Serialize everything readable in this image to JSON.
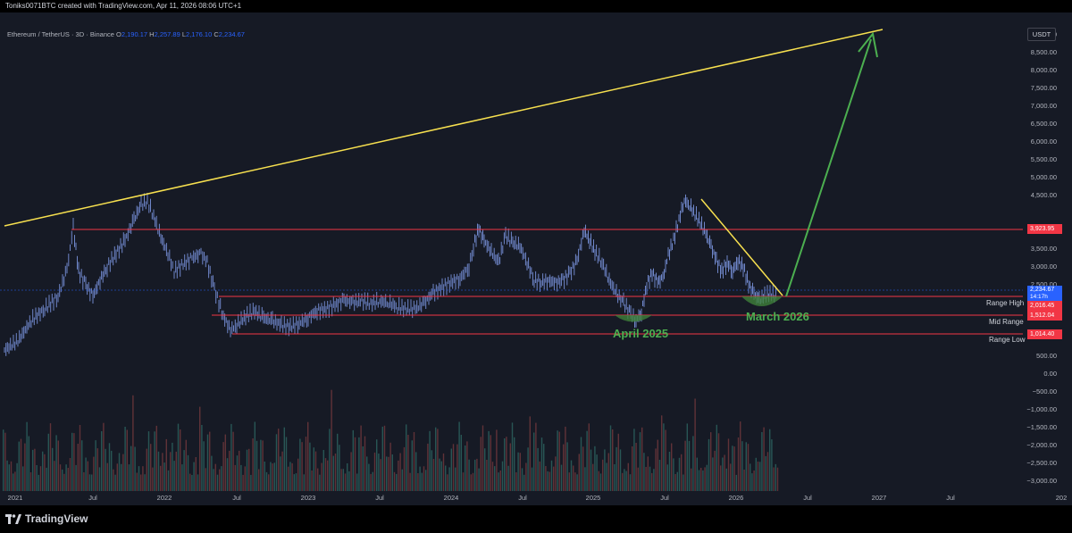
{
  "header": {
    "credit": "Toniks0071BTC created with TradingView.com, Apr 11, 2026 08:06 UTC+1"
  },
  "legend": {
    "symbol": "Ethereum / TetherUS · 3D · Binance",
    "o_label": "O",
    "o_value": "2,190.17",
    "h_label": "H",
    "h_value": "2,257.89",
    "l_label": "L",
    "l_value": "2,176.10",
    "c_label": "C",
    "c_value": "2,234.67"
  },
  "price_axis": {
    "unit": "USDT",
    "ticks": [
      "9,000.00",
      "8,500.00",
      "8,000.00",
      "7,500.00",
      "7,000.00",
      "6,500.00",
      "6,000.00",
      "5,500.00",
      "5,000.00",
      "4,500.00",
      "3,500.00",
      "3,000.00",
      "2,500.00",
      "500.00",
      "0.00",
      "−500.00",
      "−1,000.00",
      "−1,500.00",
      "−2,000.00",
      "−2,500.00",
      "−3,000.00"
    ]
  },
  "time_axis": {
    "labels": [
      "2021",
      "Jul",
      "2022",
      "Jul",
      "2023",
      "Jul",
      "2024",
      "Jul",
      "2025",
      "Jul",
      "2026",
      "Jul",
      "2027",
      "Jul",
      "202"
    ]
  },
  "price_tags": {
    "range_top": {
      "value": "3,923.95",
      "color": "#f23645"
    },
    "current": {
      "value": "2,234.67",
      "countdown": "14:17h",
      "color": "#2962ff"
    },
    "range_high": {
      "value": "2,016.45",
      "color": "#f23645"
    },
    "mid_range": {
      "value": "1,512.04",
      "color": "#f23645"
    },
    "range_low": {
      "value": "1,014.40",
      "color": "#f23645"
    }
  },
  "levels": {
    "range_high_label": "Range High",
    "mid_range_label": "Mid Range",
    "range_low_label": "Range Low"
  },
  "annotations": {
    "april": "April 2025",
    "march": "March 2026"
  },
  "colors": {
    "background": "#161a25",
    "up_candle": "#5b7fd1",
    "level_line": "#f23645",
    "trend_line": "#f7e04f",
    "arrow": "#4caf50"
  },
  "footer": {
    "brand": "TradingView"
  }
}
